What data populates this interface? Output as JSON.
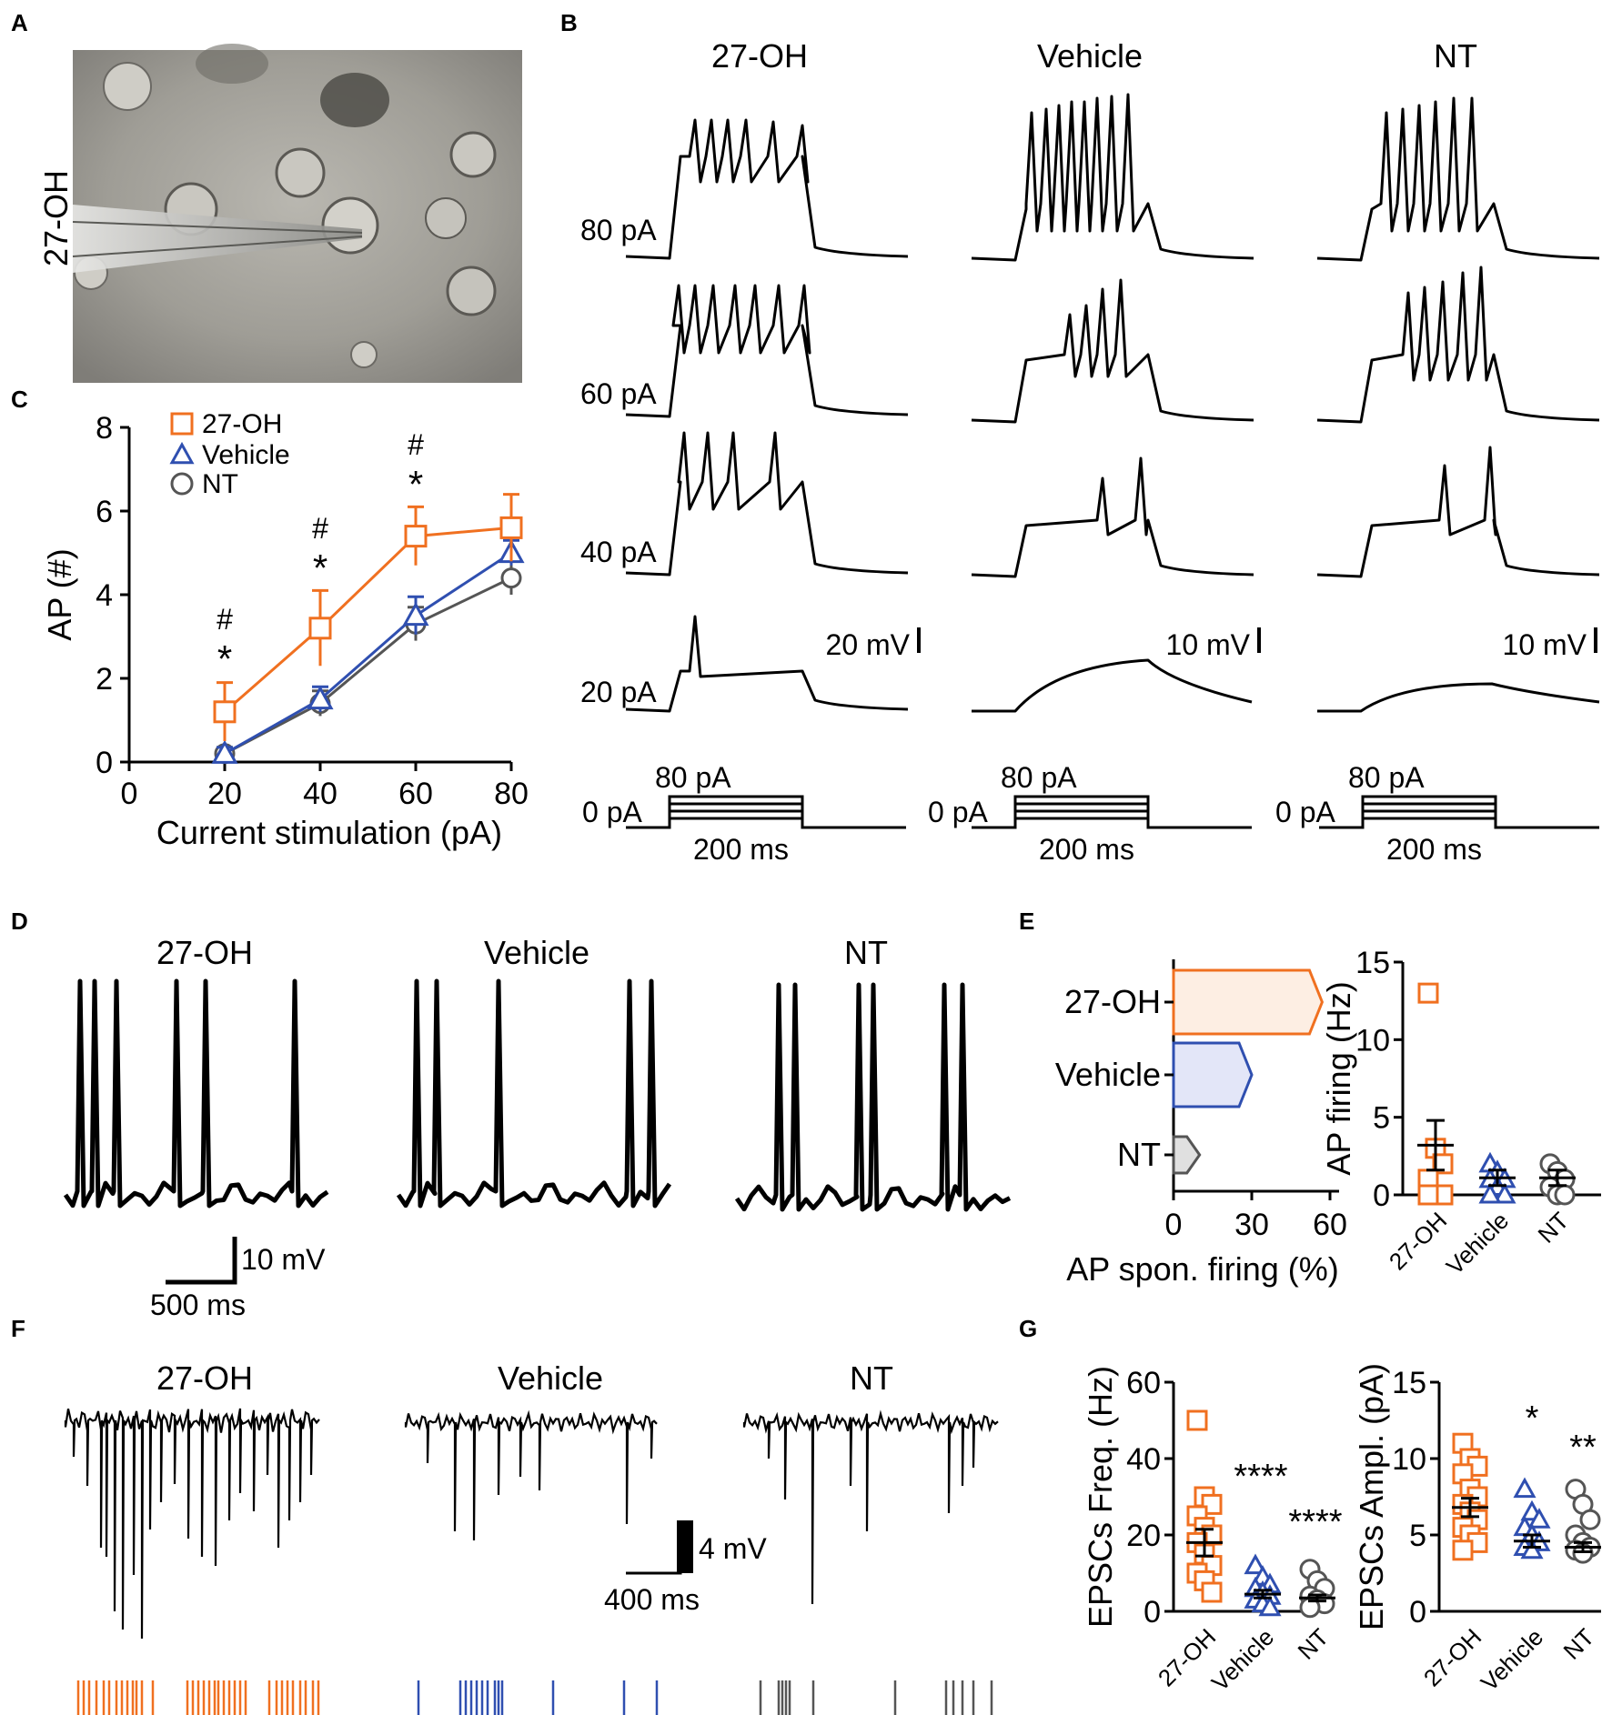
{
  "colors": {
    "orange": "#f07020",
    "blue": "#2f4fb0",
    "gray": "#555555",
    "black": "#000000"
  },
  "panels": {
    "A": "A",
    "B": "B",
    "C": "C",
    "D": "D",
    "E": "E",
    "F": "F",
    "G": "G"
  },
  "panel_a": {
    "side_label": "27-OH"
  },
  "panel_b": {
    "columns": [
      "27-OH",
      "Vehicle",
      "NT"
    ],
    "rows": [
      "80 pA",
      "60 pA",
      "40 pA",
      "20 pA"
    ],
    "scales": [
      "20 mV",
      "10 mV",
      "10 mV"
    ],
    "stim_top": "80 pA",
    "stim_base": "0 pA",
    "stim_duration": "200 ms"
  },
  "panel_d": {
    "columns": [
      "27-OH",
      "Vehicle",
      "NT"
    ],
    "scale_v": "10 mV",
    "scale_t": "500 ms"
  },
  "panel_f": {
    "columns": [
      "27-OH",
      "Vehicle",
      "NT"
    ],
    "scale_v": "4 mV",
    "scale_t": "400 ms"
  },
  "chart_data": [
    {
      "id": "C",
      "type": "line",
      "xlabel": "Current stimulation (pA)",
      "ylabel": "AP (#)",
      "xlim": [
        0,
        80
      ],
      "ylim": [
        0,
        8
      ],
      "xticks": [
        0,
        20,
        40,
        60,
        80
      ],
      "yticks": [
        0,
        2,
        4,
        6,
        8
      ],
      "x": [
        20,
        40,
        60,
        80
      ],
      "series": [
        {
          "name": "27-OH",
          "values": [
            1.2,
            3.2,
            5.4,
            5.6
          ],
          "err": [
            0.7,
            0.9,
            0.7,
            0.8
          ],
          "marker": "square",
          "color": "#f07020"
        },
        {
          "name": "Vehicle",
          "values": [
            0.2,
            1.5,
            3.5,
            5.0
          ],
          "err": [
            0.15,
            0.3,
            0.45,
            0.3
          ],
          "marker": "triangle",
          "color": "#2f4fb0"
        },
        {
          "name": "NT",
          "values": [
            0.2,
            1.4,
            3.3,
            4.4
          ],
          "err": [
            0.15,
            0.3,
            0.4,
            0.4
          ],
          "marker": "circle",
          "color": "#555555"
        }
      ],
      "annotations": [
        {
          "x": 20,
          "text": [
            "#",
            "*"
          ]
        },
        {
          "x": 40,
          "text": [
            "#",
            "*"
          ]
        },
        {
          "x": 60,
          "text": [
            "#",
            "*"
          ]
        }
      ],
      "legend": "top-left"
    },
    {
      "id": "E-left",
      "type": "bar",
      "orientation": "horizontal",
      "categories": [
        "27-OH",
        "Vehicle",
        "NT"
      ],
      "values": [
        57,
        30,
        10
      ],
      "xlabel": "AP spon. firing (%)",
      "xlim": [
        0,
        60
      ],
      "xticks": [
        0,
        30,
        60
      ]
    },
    {
      "id": "E-right",
      "type": "scatter",
      "categories": [
        "27-OH",
        "Vehicle",
        "NT"
      ],
      "ylabel": "AP firing (Hz)",
      "ylim": [
        0,
        15
      ],
      "yticks": [
        0,
        5,
        10,
        15
      ],
      "means": [
        3.2,
        1.1,
        1.1
      ],
      "sem": [
        1.6,
        0.5,
        0.5
      ],
      "points": [
        [
          13,
          3,
          2,
          1,
          0,
          0,
          0
        ],
        [
          2,
          1.5,
          1,
          1,
          0.5,
          0,
          0
        ],
        [
          2,
          1.5,
          1,
          0.5,
          0,
          0
        ]
      ]
    },
    {
      "id": "G-left",
      "type": "scatter",
      "categories": [
        "27-OH",
        "Vehicle",
        "NT"
      ],
      "ylabel": "EPSCs Freq. (Hz)",
      "ylim": [
        0,
        60
      ],
      "yticks": [
        0,
        20,
        40,
        60
      ],
      "means": [
        18,
        4.5,
        3.5
      ],
      "sem": [
        3.5,
        1.0,
        0.8
      ],
      "points": [
        [
          50,
          30,
          28,
          25,
          22,
          20,
          18,
          15,
          12,
          10,
          8,
          5
        ],
        [
          12,
          9,
          7,
          6,
          5,
          4,
          3,
          2,
          1
        ],
        [
          11,
          8,
          6,
          4,
          3,
          2,
          1
        ]
      ],
      "annotations": [
        {
          "cat": 1,
          "text": "****"
        },
        {
          "cat": 2,
          "text": "****"
        }
      ]
    },
    {
      "id": "G-right",
      "type": "scatter",
      "categories": [
        "27-OH",
        "Vehicle",
        "NT"
      ],
      "ylabel": "EPSCs Ampl. (pA)",
      "ylim": [
        0,
        15
      ],
      "yticks": [
        0,
        5,
        10,
        15
      ],
      "means": [
        6.8,
        4.6,
        4.2
      ],
      "sem": [
        0.6,
        0.4,
        0.3
      ],
      "points": [
        [
          11,
          10,
          9.5,
          9,
          8,
          7.5,
          7,
          6.5,
          6,
          5.5,
          5,
          4.5,
          4
        ],
        [
          8,
          6.5,
          6,
          5.5,
          5,
          4.5,
          4.2,
          4
        ],
        [
          8,
          7,
          6,
          5,
          4.5,
          4.2,
          4,
          3.8
        ]
      ],
      "annotations": [
        {
          "cat": 1,
          "text": "*"
        },
        {
          "cat": 2,
          "text": "**"
        }
      ]
    }
  ]
}
